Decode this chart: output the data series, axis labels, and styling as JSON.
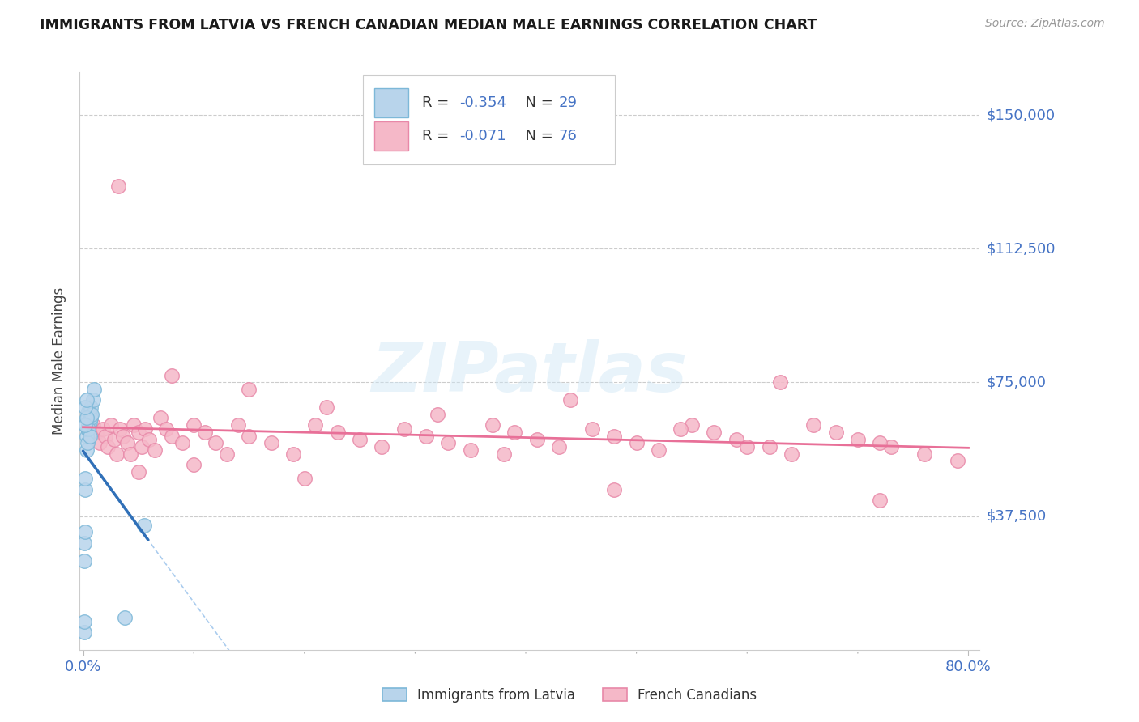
{
  "title": "IMMIGRANTS FROM LATVIA VS FRENCH CANADIAN MEDIAN MALE EARNINGS CORRELATION CHART",
  "source": "Source: ZipAtlas.com",
  "ylabel": "Median Male Earnings",
  "ytick_labels": [
    "$150,000",
    "$112,500",
    "$75,000",
    "$37,500"
  ],
  "ytick_values": [
    150000,
    112500,
    75000,
    37500
  ],
  "ylim": [
    0,
    162000
  ],
  "xlim_min": -0.003,
  "xlim_max": 0.81,
  "xlabel_ticks": [
    0.0,
    0.8
  ],
  "xlabel_labels": [
    "0.0%",
    "80.0%"
  ],
  "legend1_label": "Immigrants from Latvia",
  "legend2_label": "French Canadians",
  "r1": "-0.354",
  "n1": "29",
  "r2": "-0.071",
  "n2": "76",
  "watermark": "ZIPatlas",
  "bg_color": "#ffffff",
  "blue_face": "#b8d4eb",
  "blue_edge": "#7db8d8",
  "pink_face": "#f5b8c8",
  "pink_edge": "#e888a8",
  "blue_line": "#3070b8",
  "pink_line": "#e87098",
  "grid_color": "#cccccc",
  "tick_color": "#4472c4",
  "title_color": "#1a1a1a",
  "source_color": "#999999",
  "ylabel_color": "#444444",
  "legend_text_color": "#4472c4",
  "legend_r_color": "#333333",
  "latvia_x": [
    0.001,
    0.001,
    0.002,
    0.002,
    0.003,
    0.004,
    0.004,
    0.005,
    0.005,
    0.006,
    0.006,
    0.007,
    0.007,
    0.008,
    0.009,
    0.01,
    0.003,
    0.004,
    0.005,
    0.006,
    0.001,
    0.001,
    0.002,
    0.055,
    0.038,
    0.002,
    0.003,
    0.002,
    0.003
  ],
  "latvia_y": [
    5000,
    8000,
    45000,
    48000,
    60000,
    62000,
    65000,
    63000,
    67000,
    64000,
    67000,
    65000,
    68000,
    66000,
    70000,
    73000,
    56000,
    58000,
    62000,
    60000,
    25000,
    30000,
    33000,
    35000,
    9000,
    63000,
    65000,
    68000,
    70000
  ],
  "french_x": [
    0.006,
    0.009,
    0.012,
    0.015,
    0.018,
    0.02,
    0.022,
    0.025,
    0.028,
    0.03,
    0.033,
    0.036,
    0.04,
    0.043,
    0.046,
    0.05,
    0.053,
    0.056,
    0.06,
    0.065,
    0.07,
    0.075,
    0.08,
    0.09,
    0.1,
    0.11,
    0.12,
    0.13,
    0.14,
    0.15,
    0.17,
    0.19,
    0.21,
    0.23,
    0.25,
    0.27,
    0.29,
    0.31,
    0.33,
    0.35,
    0.37,
    0.39,
    0.41,
    0.43,
    0.46,
    0.48,
    0.5,
    0.52,
    0.55,
    0.57,
    0.59,
    0.62,
    0.64,
    0.66,
    0.68,
    0.7,
    0.73,
    0.76,
    0.79,
    0.032,
    0.08,
    0.15,
    0.22,
    0.32,
    0.44,
    0.54,
    0.63,
    0.72,
    0.05,
    0.1,
    0.2,
    0.38,
    0.48,
    0.6,
    0.72
  ],
  "french_y": [
    60000,
    63000,
    61000,
    58000,
    62000,
    60000,
    57000,
    63000,
    59000,
    55000,
    62000,
    60000,
    58000,
    55000,
    63000,
    61000,
    57000,
    62000,
    59000,
    56000,
    65000,
    62000,
    60000,
    58000,
    63000,
    61000,
    58000,
    55000,
    63000,
    60000,
    58000,
    55000,
    63000,
    61000,
    59000,
    57000,
    62000,
    60000,
    58000,
    56000,
    63000,
    61000,
    59000,
    57000,
    62000,
    60000,
    58000,
    56000,
    63000,
    61000,
    59000,
    57000,
    55000,
    63000,
    61000,
    59000,
    57000,
    55000,
    53000,
    130000,
    77000,
    73000,
    68000,
    66000,
    70000,
    62000,
    75000,
    58000,
    50000,
    52000,
    48000,
    55000,
    45000,
    57000,
    42000
  ]
}
